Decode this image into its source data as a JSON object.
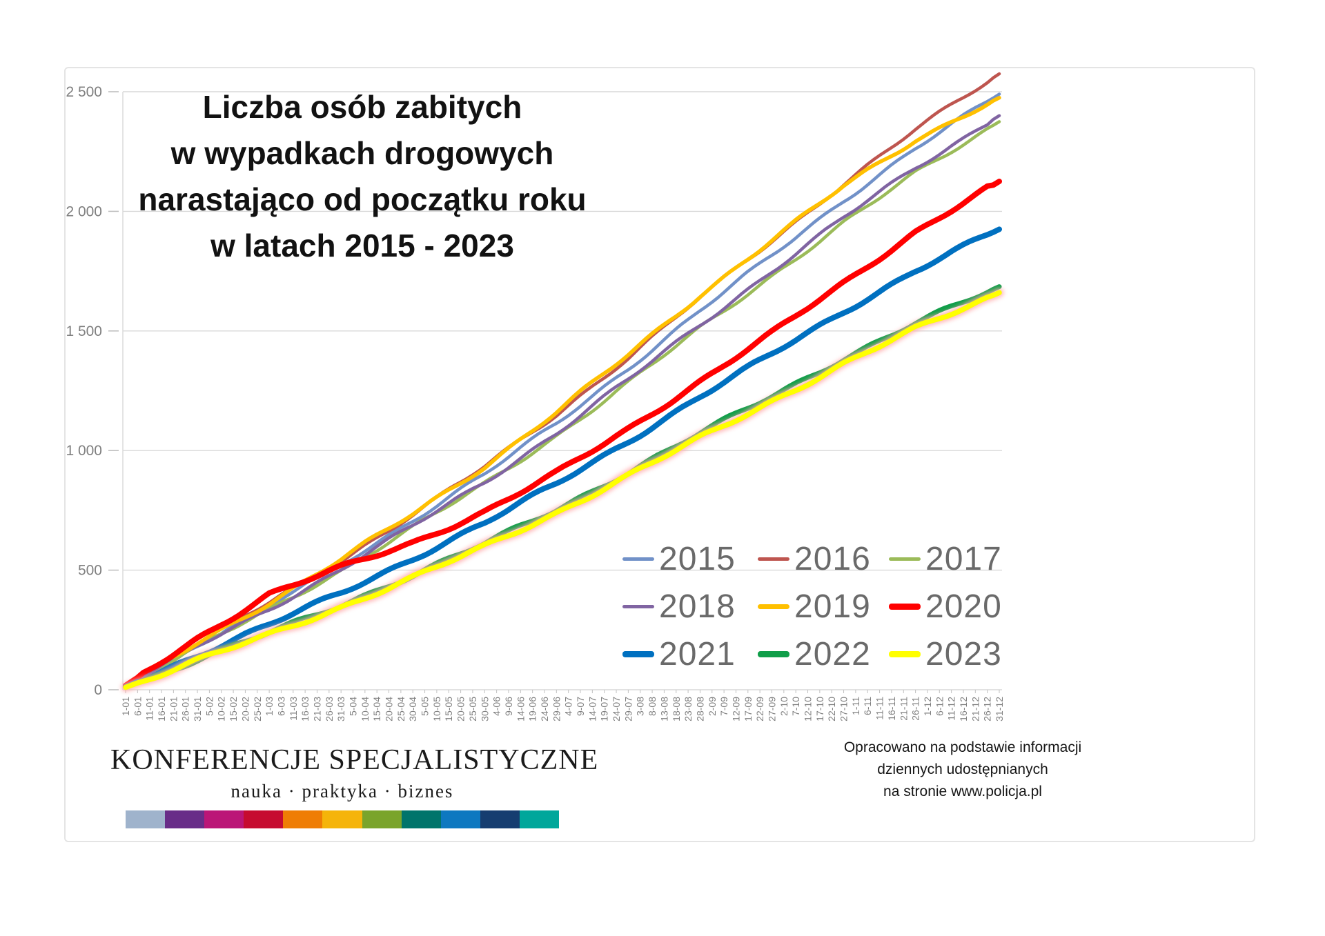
{
  "title": {
    "lines": [
      "Liczba osób zabitych",
      "w wypadkach drogowych",
      "narastająco od początku roku",
      "w latach 2015 - 2023"
    ]
  },
  "chart_data": {
    "type": "line",
    "title": "Liczba osób zabitych w wypadkach drogowych narastająco od początku roku w latach 2015 - 2023",
    "xlabel": "",
    "ylabel": "",
    "ylim": [
      0,
      2500
    ],
    "grid": "horizontal",
    "legend_position": "inside-bottom-right",
    "y_ticks": [
      {
        "value": 0,
        "label": "0"
      },
      {
        "value": 500,
        "label": "500"
      },
      {
        "value": 1000,
        "label": "1 000"
      },
      {
        "value": 1500,
        "label": "1 500"
      },
      {
        "value": 2000,
        "label": "2 000"
      },
      {
        "value": 2500,
        "label": "2 500"
      }
    ],
    "x_labels": [
      "1-01",
      "6-01",
      "11-01",
      "16-01",
      "21-01",
      "26-01",
      "31-01",
      "5-02",
      "10-02",
      "15-02",
      "20-02",
      "25-02",
      "1-03",
      "6-03",
      "11-03",
      "16-03",
      "21-03",
      "26-03",
      "31-03",
      "5-04",
      "10-04",
      "15-04",
      "20-04",
      "25-04",
      "30-04",
      "5-05",
      "10-05",
      "15-05",
      "20-05",
      "25-05",
      "30-05",
      "4-06",
      "9-06",
      "14-06",
      "19-06",
      "24-06",
      "29-06",
      "4-07",
      "9-07",
      "14-07",
      "19-07",
      "24-07",
      "29-07",
      "3-08",
      "8-08",
      "13-08",
      "18-08",
      "23-08",
      "28-08",
      "2-09",
      "7-09",
      "12-09",
      "17-09",
      "22-09",
      "27-09",
      "2-10",
      "7-10",
      "12-10",
      "17-10",
      "22-10",
      "27-10",
      "1-11",
      "6-11",
      "11-11",
      "16-11",
      "21-11",
      "26-11",
      "1-12",
      "6-12",
      "11-12",
      "16-12",
      "21-12",
      "26-12",
      "31-12"
    ],
    "anchor_days": [
      1,
      31,
      61,
      91,
      121,
      151,
      181,
      211,
      241,
      271,
      301,
      331,
      366
    ],
    "series": [
      {
        "name": "2015",
        "color": "#7191C8",
        "stroke": 4.5,
        "legend_thickness": 5,
        "glow": false,
        "values": [
          15,
          187,
          351,
          523,
          710,
          901,
          1113,
          1345,
          1584,
          1815,
          2047,
          2263,
          2490
        ]
      },
      {
        "name": "2016",
        "color": "#BE554F",
        "stroke": 4.5,
        "legend_thickness": 5,
        "glow": false,
        "values": [
          15,
          193,
          363,
          541,
          734,
          932,
          1151,
          1390,
          1638,
          1877,
          2117,
          2341,
          2575
        ]
      },
      {
        "name": "2017",
        "color": "#9BBB59",
        "stroke": 4.5,
        "legend_thickness": 5,
        "glow": false,
        "values": [
          14,
          178,
          335,
          499,
          677,
          860,
          1062,
          1283,
          1511,
          1731,
          1952,
          2159,
          2375
        ]
      },
      {
        "name": "2018",
        "color": "#8064A2",
        "stroke": 4.5,
        "legend_thickness": 5,
        "glow": false,
        "values": [
          14,
          180,
          338,
          504,
          684,
          869,
          1073,
          1296,
          1526,
          1750,
          1973,
          2182,
          2400
        ]
      },
      {
        "name": "2019",
        "color": "#FFC000",
        "stroke": 5.5,
        "legend_thickness": 7,
        "glow": false,
        "values": [
          16,
          195,
          365,
          545,
          735,
          935,
          1160,
          1400,
          1650,
          1880,
          2105,
          2300,
          2475
        ]
      },
      {
        "name": "2020",
        "color": "#FF0000",
        "stroke": 8,
        "legend_thickness": 9,
        "glow": false,
        "values": [
          18,
          215,
          400,
          510,
          615,
          745,
          905,
          1090,
          1290,
          1490,
          1700,
          1915,
          2125
        ]
      },
      {
        "name": "2021",
        "color": "#0070C0",
        "stroke": 8,
        "legend_thickness": 9,
        "glow": false,
        "values": [
          12,
          145,
          272,
          404,
          549,
          697,
          861,
          1040,
          1224,
          1403,
          1582,
          1751,
          1925
        ]
      },
      {
        "name": "2022",
        "color": "#109E49",
        "stroke": 7,
        "legend_thickness": 9,
        "glow": false,
        "values": [
          11,
          126,
          237,
          354,
          480,
          610,
          753,
          910,
          1071,
          1228,
          1385,
          1530,
          1685
        ]
      },
      {
        "name": "2023",
        "color": "#FFFF00",
        "stroke": 7.5,
        "legend_thickness": 9,
        "glow": true,
        "glow_color": "#FFABAB",
        "values": [
          10,
          122,
          230,
          346,
          468,
          598,
          740,
          895,
          1052,
          1207,
          1362,
          1508,
          1660
        ]
      }
    ]
  },
  "footer": {
    "logo_line1": "KONFERENCJE SPECJALISTYCZNE",
    "logo_line2": "nauka · praktyka · biznes",
    "strip_colors": [
      "#9FB3CC",
      "#682D88",
      "#BB1677",
      "#C60C30",
      "#EF7D05",
      "#F5B40A",
      "#7AA42B",
      "#00746B",
      "#0E78C0",
      "#163D70",
      "#00A79B"
    ],
    "attribution": {
      "line1": "Opracowano na podstawie informacji",
      "line2": "dziennych udostępnianych",
      "line3": "na stronie www.policja.pl"
    }
  }
}
